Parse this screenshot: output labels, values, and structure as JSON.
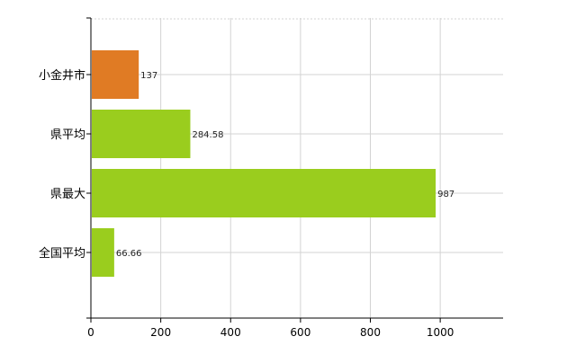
{
  "chart_data": {
    "type": "bar",
    "orientation": "horizontal",
    "categories": [
      "小金井市",
      "県平均",
      "県最大",
      "全国平均"
    ],
    "values": [
      137,
      284.58,
      987,
      66.66
    ],
    "value_labels": [
      "137",
      "284.58",
      "987",
      "66.66"
    ],
    "bar_colors": [
      "#e07b24",
      "#9acd1e",
      "#9acd1e",
      "#9acd1e"
    ],
    "xlim": [
      0,
      1180
    ],
    "xticks": [
      0,
      200,
      400,
      600,
      800,
      1000
    ],
    "xtick_labels": [
      "0",
      "200",
      "400",
      "600",
      "800",
      "1000"
    ],
    "grid": true,
    "grid_color": "#d3d3d3",
    "title": "",
    "xlabel": "",
    "ylabel": ""
  }
}
